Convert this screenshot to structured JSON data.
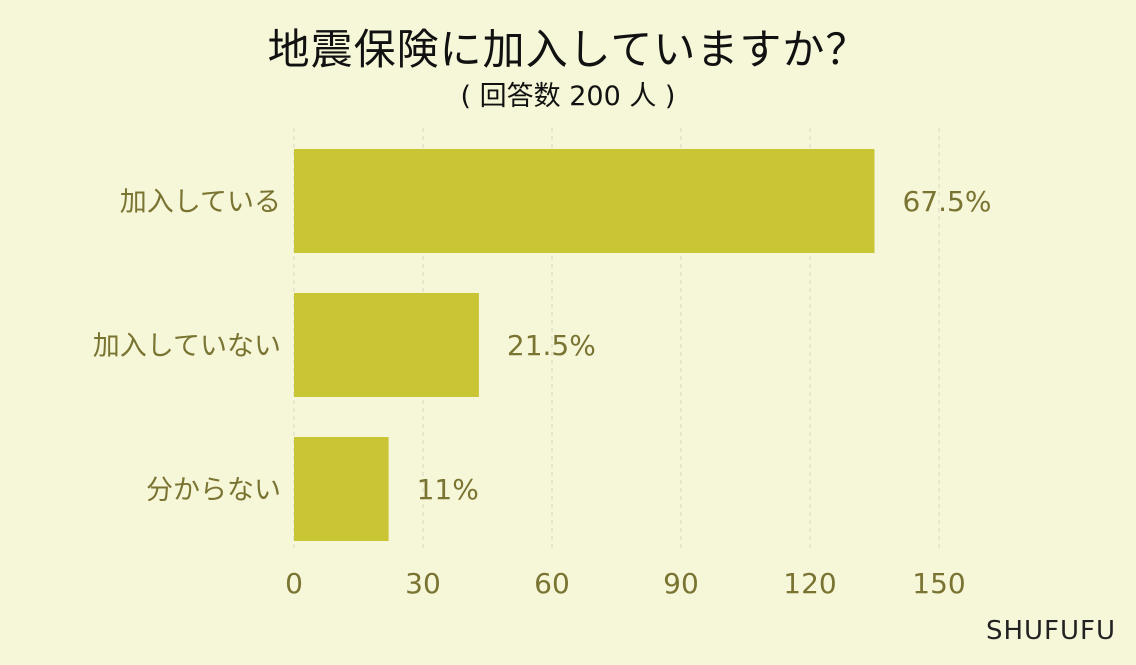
{
  "title": "地震保険に加入していますか？",
  "subtitle": "( 回答数 200 人 )",
  "brand": "SHUFUFU",
  "colors": {
    "background": "#f6f6d8",
    "bar": "#cac535",
    "label": "#7a7432",
    "grid": "#d8d8c4"
  },
  "chart_data": {
    "type": "bar",
    "orientation": "horizontal",
    "categories": [
      "加入している",
      "加入していない",
      "分からない"
    ],
    "values": [
      135,
      43,
      22
    ],
    "data_labels": [
      "67.5%",
      "21.5%",
      "11%"
    ],
    "xticks": [
      "0",
      "30",
      "60",
      "90",
      "120",
      "150"
    ],
    "xlim": [
      0,
      150
    ],
    "grid": true,
    "title": "地震保険に加入していますか？",
    "xlabel": "",
    "ylabel": ""
  }
}
